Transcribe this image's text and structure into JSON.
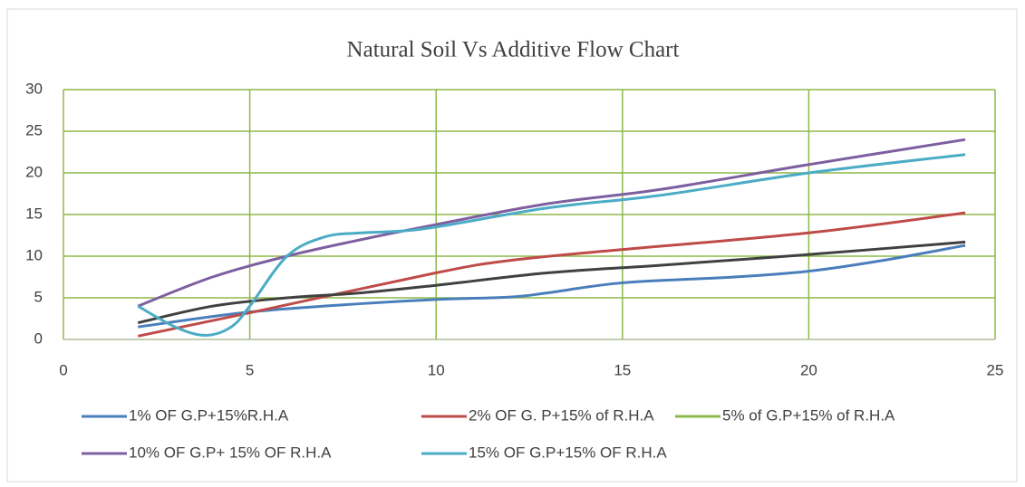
{
  "chart_data": {
    "type": "line",
    "title": "Natural Soil Vs Additive Flow Chart",
    "xlim": [
      0,
      25
    ],
    "xticks": [
      0,
      5,
      10,
      15,
      20,
      25
    ],
    "ylim": [
      0,
      30
    ],
    "yticks": [
      0,
      5,
      10,
      15,
      20,
      25,
      30
    ],
    "grid": true,
    "grid_color": "#8db84a",
    "legend": "bottom",
    "series": [
      {
        "name": "1% OF G.P+15%R.H.A",
        "color": "#4a7ebb",
        "x": [
          2,
          5,
          8,
          10,
          12,
          13,
          15,
          18,
          20,
          22,
          24.2
        ],
        "values": [
          1.5,
          3.3,
          4.3,
          4.8,
          5.1,
          5.6,
          6.8,
          7.5,
          8.2,
          9.5,
          11.3
        ]
      },
      {
        "name": "2% OF G. P+15% of R.H.A",
        "color": "#be4b48",
        "x": [
          2,
          5,
          10,
          12,
          15,
          20,
          24.2
        ],
        "values": [
          0.4,
          3.2,
          8,
          9.5,
          10.8,
          12.8,
          15.2
        ]
      },
      {
        "name": "5% of G.P+15% of R.H.A",
        "color": "#8db84a",
        "line_color": "#404040",
        "x": [
          2,
          4,
          6,
          8,
          10,
          13,
          16,
          20,
          24.2
        ],
        "values": [
          2,
          4,
          5,
          5.6,
          6.5,
          8,
          8.9,
          10.2,
          11.7
        ]
      },
      {
        "name": "10% OF G.P+ 15% OF R.H.A",
        "color": "#7d5fa0",
        "x": [
          2,
          4,
          6,
          8,
          10,
          13,
          16,
          20,
          24.2
        ],
        "values": [
          4,
          7.5,
          10,
          12,
          13.8,
          16.3,
          18,
          21,
          24
        ]
      },
      {
        "name": "15% OF G.P+15% OF R.H.A",
        "color": "#4bacc6",
        "x": [
          2,
          3,
          3.8,
          4.5,
          5,
          6,
          7,
          8,
          9,
          10,
          13,
          16,
          20,
          24.2
        ],
        "values": [
          4,
          1.5,
          0.5,
          1.5,
          4,
          10,
          12.3,
          12.8,
          13,
          13.5,
          15.8,
          17.3,
          20,
          22.2
        ]
      }
    ]
  }
}
